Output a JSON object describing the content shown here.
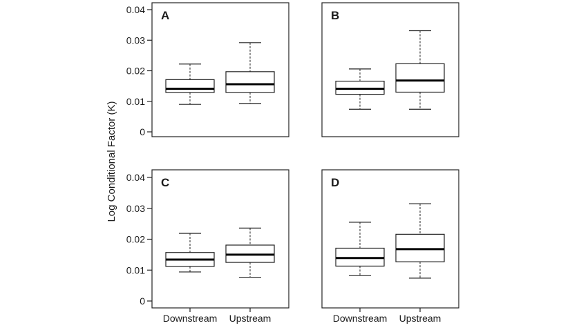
{
  "chart_data": {
    "type": "boxplot",
    "ylabel": "Log Conditional Factor (K)",
    "ylim": [
      0,
      0.04
    ],
    "yticks": [
      0,
      0.01,
      0.02,
      0.03,
      0.04
    ],
    "ytick_labels": [
      "0",
      "0.01",
      "0.02",
      "0.03",
      "0.04"
    ],
    "categories": [
      "Downstream",
      "Upstream"
    ],
    "grid": false,
    "panels": [
      {
        "label": "A",
        "boxes": [
          {
            "category": "Downstream",
            "whisker_low": 0.009,
            "q1": 0.0129,
            "median": 0.0141,
            "q3": 0.0171,
            "whisker_high": 0.0222
          },
          {
            "category": "Upstream",
            "whisker_low": 0.0093,
            "q1": 0.0129,
            "median": 0.0156,
            "q3": 0.0197,
            "whisker_high": 0.0292
          }
        ]
      },
      {
        "label": "B",
        "boxes": [
          {
            "category": "Downstream",
            "whisker_low": 0.0074,
            "q1": 0.0123,
            "median": 0.0141,
            "q3": 0.0166,
            "whisker_high": 0.0206
          },
          {
            "category": "Upstream",
            "whisker_low": 0.0074,
            "q1": 0.013,
            "median": 0.0168,
            "q3": 0.0223,
            "whisker_high": 0.0331
          }
        ]
      },
      {
        "label": "C",
        "boxes": [
          {
            "category": "Downstream",
            "whisker_low": 0.0094,
            "q1": 0.0112,
            "median": 0.0134,
            "q3": 0.0157,
            "whisker_high": 0.0219
          },
          {
            "category": "Upstream",
            "whisker_low": 0.0077,
            "q1": 0.0125,
            "median": 0.015,
            "q3": 0.0181,
            "whisker_high": 0.0236
          }
        ]
      },
      {
        "label": "D",
        "boxes": [
          {
            "category": "Downstream",
            "whisker_low": 0.0082,
            "q1": 0.0113,
            "median": 0.0139,
            "q3": 0.0171,
            "whisker_high": 0.0255
          },
          {
            "category": "Upstream",
            "whisker_low": 0.0074,
            "q1": 0.0127,
            "median": 0.0168,
            "q3": 0.0216,
            "whisker_high": 0.0315
          }
        ]
      }
    ]
  }
}
